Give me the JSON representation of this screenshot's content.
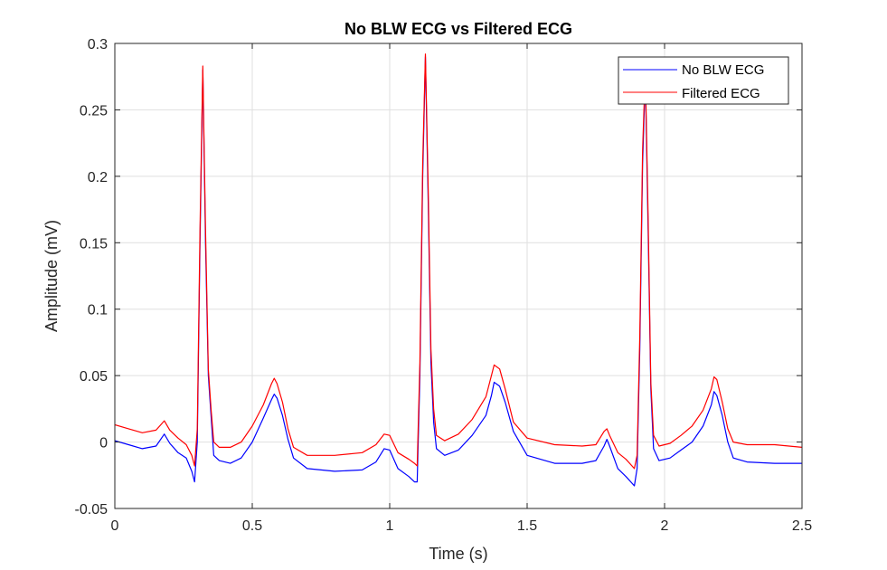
{
  "chart_data": {
    "type": "line",
    "title": "No BLW ECG vs Filtered ECG",
    "xlabel": "Time (s)",
    "ylabel": "Amplitude (mV)",
    "xlim": [
      0,
      2.5
    ],
    "ylim": [
      -0.05,
      0.3
    ],
    "xticks": [
      "0",
      "0.5",
      "1",
      "1.5",
      "2",
      "2.5"
    ],
    "yticks": [
      "-0.05",
      "0",
      "0.05",
      "0.1",
      "0.15",
      "0.2",
      "0.25",
      "0.3"
    ],
    "grid": true,
    "legend_position": "top-right",
    "series": [
      {
        "name": "No BLW ECG",
        "color": "#0000ff",
        "x": [
          0,
          0.05,
          0.1,
          0.15,
          0.18,
          0.2,
          0.23,
          0.26,
          0.28,
          0.29,
          0.3,
          0.31,
          0.32,
          0.33,
          0.34,
          0.35,
          0.36,
          0.38,
          0.42,
          0.46,
          0.5,
          0.54,
          0.57,
          0.58,
          0.59,
          0.61,
          0.63,
          0.65,
          0.7,
          0.8,
          0.9,
          0.95,
          0.98,
          1.0,
          1.03,
          1.07,
          1.09,
          1.1,
          1.11,
          1.12,
          1.13,
          1.14,
          1.15,
          1.16,
          1.17,
          1.2,
          1.25,
          1.3,
          1.35,
          1.37,
          1.38,
          1.4,
          1.42,
          1.45,
          1.5,
          1.6,
          1.7,
          1.75,
          1.78,
          1.79,
          1.8,
          1.83,
          1.86,
          1.89,
          1.9,
          1.91,
          1.92,
          1.93,
          1.94,
          1.95,
          1.96,
          1.98,
          2.02,
          2.06,
          2.1,
          2.14,
          2.17,
          2.18,
          2.19,
          2.21,
          2.23,
          2.25,
          2.3,
          2.4,
          2.5
        ],
        "y": [
          0.001,
          -0.002,
          -0.005,
          -0.003,
          0.006,
          -0.001,
          -0.008,
          -0.012,
          -0.022,
          -0.03,
          0.0,
          0.15,
          0.28,
          0.15,
          0.05,
          0.02,
          -0.01,
          -0.014,
          -0.016,
          -0.012,
          0.0,
          0.018,
          0.032,
          0.036,
          0.033,
          0.02,
          0.002,
          -0.012,
          -0.02,
          -0.022,
          -0.021,
          -0.015,
          -0.005,
          -0.006,
          -0.02,
          -0.026,
          -0.03,
          -0.03,
          0.05,
          0.2,
          0.29,
          0.18,
          0.06,
          0.015,
          -0.005,
          -0.01,
          -0.006,
          0.005,
          0.02,
          0.035,
          0.045,
          0.042,
          0.03,
          0.008,
          -0.01,
          -0.016,
          -0.016,
          -0.014,
          -0.003,
          0.002,
          -0.003,
          -0.02,
          -0.026,
          -0.033,
          -0.02,
          0.07,
          0.21,
          0.275,
          0.16,
          0.04,
          -0.005,
          -0.014,
          -0.012,
          -0.006,
          0.0,
          0.012,
          0.028,
          0.038,
          0.035,
          0.02,
          0.0,
          -0.012,
          -0.015,
          -0.016,
          -0.016
        ]
      },
      {
        "name": "Filtered ECG",
        "color": "#ff0000",
        "x": [
          0,
          0.05,
          0.1,
          0.15,
          0.18,
          0.2,
          0.23,
          0.26,
          0.28,
          0.29,
          0.3,
          0.31,
          0.32,
          0.33,
          0.34,
          0.35,
          0.36,
          0.38,
          0.42,
          0.46,
          0.5,
          0.54,
          0.57,
          0.58,
          0.59,
          0.61,
          0.63,
          0.65,
          0.7,
          0.8,
          0.9,
          0.95,
          0.98,
          1.0,
          1.03,
          1.07,
          1.09,
          1.1,
          1.11,
          1.12,
          1.13,
          1.14,
          1.15,
          1.16,
          1.17,
          1.2,
          1.25,
          1.3,
          1.35,
          1.37,
          1.38,
          1.4,
          1.42,
          1.45,
          1.5,
          1.6,
          1.7,
          1.75,
          1.78,
          1.79,
          1.8,
          1.83,
          1.86,
          1.89,
          1.9,
          1.91,
          1.92,
          1.93,
          1.94,
          1.95,
          1.96,
          1.98,
          2.02,
          2.06,
          2.1,
          2.14,
          2.17,
          2.18,
          2.19,
          2.21,
          2.23,
          2.25,
          2.3,
          2.4,
          2.5
        ],
        "y": [
          0.013,
          0.01,
          0.007,
          0.009,
          0.016,
          0.009,
          0.003,
          -0.002,
          -0.01,
          -0.018,
          0.01,
          0.16,
          0.283,
          0.16,
          0.055,
          0.025,
          0.0,
          -0.004,
          -0.004,
          0.0,
          0.012,
          0.028,
          0.044,
          0.048,
          0.044,
          0.03,
          0.01,
          -0.004,
          -0.01,
          -0.01,
          -0.008,
          -0.002,
          0.006,
          0.005,
          -0.008,
          -0.013,
          -0.016,
          -0.018,
          0.06,
          0.21,
          0.292,
          0.19,
          0.07,
          0.025,
          0.005,
          0.001,
          0.006,
          0.017,
          0.034,
          0.05,
          0.058,
          0.055,
          0.04,
          0.015,
          0.003,
          -0.002,
          -0.003,
          -0.002,
          0.008,
          0.01,
          0.005,
          -0.008,
          -0.013,
          -0.02,
          -0.01,
          0.08,
          0.22,
          0.28,
          0.17,
          0.045,
          0.005,
          -0.003,
          -0.001,
          0.005,
          0.012,
          0.024,
          0.04,
          0.049,
          0.047,
          0.03,
          0.01,
          0.0,
          -0.002,
          -0.002,
          -0.004
        ]
      }
    ]
  }
}
